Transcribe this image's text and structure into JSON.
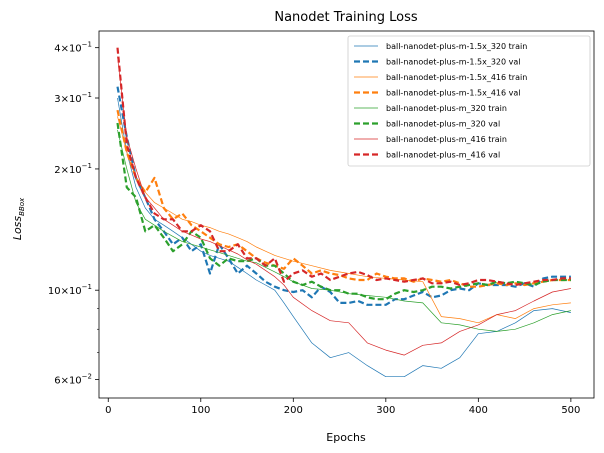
{
  "chart_data": {
    "type": "line",
    "title": "Nanodet Training Loss",
    "xlabel": "Epochs",
    "ylabel": "Loss",
    "ylabel_sub": "BBox",
    "xlim": [
      -10,
      525
    ],
    "ylim": [
      0.054,
      0.44
    ],
    "yscale": "log",
    "legend_position": "top-right",
    "grid": false,
    "x_ticks": [
      0,
      100,
      200,
      300,
      400,
      500
    ],
    "y_ticks": [
      {
        "value": 0.4,
        "base": "4",
        "exp": "−1"
      },
      {
        "value": 0.3,
        "base": "3",
        "exp": "−1"
      },
      {
        "value": 0.2,
        "base": "2",
        "exp": "−1"
      },
      {
        "value": 0.1,
        "base": "10",
        "exp": "−1"
      },
      {
        "value": 0.06,
        "base": "6",
        "exp": "−2"
      }
    ],
    "y_minor_ticks": [
      0.07,
      0.08,
      0.09
    ],
    "times_sign": "×",
    "series": [
      {
        "name": "ball-nanodet-plus-m-1.5x_320 train",
        "color": "#1f77b4",
        "style": "solid",
        "x": [
          10,
          20,
          30,
          40,
          50,
          60,
          70,
          80,
          90,
          100,
          110,
          120,
          130,
          140,
          150,
          160,
          170,
          180,
          190,
          200,
          220,
          240,
          260,
          280,
          300,
          320,
          340,
          360,
          380,
          400,
          420,
          440,
          460,
          480,
          500
        ],
        "y": [
          0.3,
          0.22,
          0.18,
          0.16,
          0.15,
          0.145,
          0.14,
          0.135,
          0.13,
          0.125,
          0.122,
          0.12,
          0.118,
          0.114,
          0.11,
          0.106,
          0.103,
          0.1,
          0.093,
          0.086,
          0.074,
          0.068,
          0.07,
          0.065,
          0.061,
          0.061,
          0.065,
          0.064,
          0.068,
          0.078,
          0.079,
          0.083,
          0.089,
          0.09,
          0.088
        ]
      },
      {
        "name": "ball-nanodet-plus-m-1.5x_320 val",
        "color": "#1f77b4",
        "style": "dashed",
        "x": [
          10,
          20,
          30,
          40,
          50,
          60,
          70,
          80,
          90,
          100,
          110,
          120,
          130,
          140,
          150,
          160,
          170,
          180,
          190,
          200,
          210,
          220,
          230,
          240,
          250,
          260,
          270,
          280,
          290,
          300,
          310,
          320,
          330,
          340,
          350,
          360,
          370,
          380,
          390,
          400,
          410,
          420,
          430,
          440,
          450,
          460,
          470,
          480,
          490,
          500
        ],
        "y": [
          0.32,
          0.24,
          0.19,
          0.17,
          0.15,
          0.14,
          0.13,
          0.135,
          0.125,
          0.13,
          0.11,
          0.13,
          0.12,
          0.11,
          0.115,
          0.11,
          0.105,
          0.102,
          0.1,
          0.099,
          0.1,
          0.096,
          0.102,
          0.099,
          0.093,
          0.093,
          0.094,
          0.092,
          0.092,
          0.092,
          0.095,
          0.095,
          0.097,
          0.099,
          0.096,
          0.097,
          0.1,
          0.101,
          0.1,
          0.104,
          0.103,
          0.103,
          0.103,
          0.102,
          0.104,
          0.102,
          0.107,
          0.108,
          0.108,
          0.108
        ]
      },
      {
        "name": "ball-nanodet-plus-m-1.5x_416 train",
        "color": "#ff7f0e",
        "style": "solid",
        "x": [
          10,
          20,
          30,
          40,
          50,
          60,
          70,
          80,
          90,
          100,
          110,
          120,
          130,
          140,
          150,
          160,
          170,
          180,
          190,
          200,
          220,
          240,
          260,
          280,
          300,
          320,
          340,
          360,
          380,
          400,
          420,
          440,
          460,
          480,
          500
        ],
        "y": [
          0.27,
          0.22,
          0.19,
          0.175,
          0.165,
          0.16,
          0.155,
          0.15,
          0.148,
          0.145,
          0.143,
          0.14,
          0.138,
          0.135,
          0.132,
          0.128,
          0.125,
          0.122,
          0.12,
          0.118,
          0.115,
          0.112,
          0.11,
          0.108,
          0.107,
          0.106,
          0.105,
          0.086,
          0.085,
          0.083,
          0.087,
          0.085,
          0.09,
          0.092,
          0.093
        ]
      },
      {
        "name": "ball-nanodet-plus-m-1.5x_416 val",
        "color": "#ff7f0e",
        "style": "dashed",
        "x": [
          10,
          20,
          30,
          40,
          50,
          60,
          70,
          80,
          90,
          100,
          110,
          120,
          130,
          140,
          150,
          160,
          170,
          180,
          190,
          200,
          210,
          220,
          230,
          240,
          250,
          260,
          270,
          280,
          290,
          300,
          310,
          320,
          330,
          340,
          350,
          360,
          370,
          380,
          390,
          400,
          410,
          420,
          430,
          440,
          450,
          460,
          470,
          480,
          490,
          500
        ],
        "y": [
          0.28,
          0.22,
          0.19,
          0.175,
          0.19,
          0.16,
          0.15,
          0.155,
          0.145,
          0.14,
          0.135,
          0.13,
          0.128,
          0.13,
          0.125,
          0.12,
          0.117,
          0.115,
          0.113,
          0.12,
          0.115,
          0.11,
          0.112,
          0.11,
          0.109,
          0.107,
          0.106,
          0.106,
          0.11,
          0.108,
          0.107,
          0.107,
          0.105,
          0.107,
          0.106,
          0.105,
          0.106,
          0.104,
          0.102,
          0.102,
          0.103,
          0.104,
          0.103,
          0.104,
          0.103,
          0.104,
          0.105,
          0.106,
          0.106,
          0.106
        ]
      },
      {
        "name": "ball-nanodet-plus-m_320 train",
        "color": "#2ca02c",
        "style": "solid",
        "x": [
          10,
          20,
          30,
          40,
          50,
          60,
          70,
          80,
          90,
          100,
          110,
          120,
          130,
          140,
          150,
          160,
          170,
          180,
          190,
          200,
          220,
          240,
          260,
          280,
          300,
          320,
          340,
          360,
          380,
          400,
          420,
          440,
          460,
          480,
          500
        ],
        "y": [
          0.25,
          0.2,
          0.165,
          0.15,
          0.145,
          0.14,
          0.136,
          0.132,
          0.13,
          0.128,
          0.126,
          0.124,
          0.122,
          0.12,
          0.118,
          0.117,
          0.114,
          0.111,
          0.108,
          0.105,
          0.101,
          0.1,
          0.098,
          0.097,
          0.096,
          0.094,
          0.093,
          0.083,
          0.082,
          0.08,
          0.079,
          0.08,
          0.083,
          0.087,
          0.089
        ]
      },
      {
        "name": "ball-nanodet-plus-m_320 val",
        "color": "#2ca02c",
        "style": "dashed",
        "x": [
          10,
          20,
          30,
          40,
          50,
          60,
          70,
          80,
          90,
          100,
          110,
          120,
          130,
          140,
          150,
          160,
          170,
          180,
          190,
          200,
          210,
          220,
          230,
          240,
          250,
          260,
          270,
          280,
          290,
          300,
          310,
          320,
          330,
          340,
          350,
          360,
          370,
          380,
          390,
          400,
          410,
          420,
          430,
          440,
          450,
          460,
          470,
          480,
          490,
          500
        ],
        "y": [
          0.26,
          0.18,
          0.17,
          0.14,
          0.145,
          0.135,
          0.125,
          0.13,
          0.14,
          0.135,
          0.12,
          0.115,
          0.12,
          0.118,
          0.118,
          0.12,
          0.115,
          0.115,
          0.11,
          0.105,
          0.103,
          0.105,
          0.102,
          0.1,
          0.1,
          0.098,
          0.098,
          0.096,
          0.095,
          0.095,
          0.098,
          0.1,
          0.099,
          0.1,
          0.102,
          0.102,
          0.101,
          0.102,
          0.103,
          0.104,
          0.103,
          0.105,
          0.104,
          0.105,
          0.104,
          0.103,
          0.105,
          0.106,
          0.106,
          0.106
        ]
      },
      {
        "name": "ball-nanodet-plus-m_416 train",
        "color": "#d62728",
        "style": "solid",
        "x": [
          10,
          20,
          30,
          40,
          50,
          60,
          70,
          80,
          90,
          100,
          110,
          120,
          130,
          140,
          150,
          160,
          170,
          180,
          190,
          200,
          220,
          240,
          260,
          280,
          300,
          320,
          340,
          360,
          380,
          400,
          420,
          440,
          460,
          480,
          500
        ],
        "y": [
          0.38,
          0.24,
          0.2,
          0.17,
          0.16,
          0.15,
          0.145,
          0.14,
          0.137,
          0.134,
          0.132,
          0.129,
          0.126,
          0.123,
          0.119,
          0.116,
          0.112,
          0.108,
          0.103,
          0.096,
          0.089,
          0.084,
          0.083,
          0.074,
          0.071,
          0.069,
          0.073,
          0.074,
          0.079,
          0.082,
          0.087,
          0.089,
          0.094,
          0.099,
          0.101
        ]
      },
      {
        "name": "ball-nanodet-plus-m_416 val",
        "color": "#d62728",
        "style": "dashed",
        "x": [
          10,
          20,
          30,
          40,
          50,
          60,
          70,
          80,
          90,
          100,
          110,
          120,
          130,
          140,
          150,
          160,
          170,
          180,
          190,
          200,
          210,
          220,
          230,
          240,
          250,
          260,
          270,
          280,
          290,
          300,
          310,
          320,
          330,
          340,
          350,
          360,
          370,
          380,
          390,
          400,
          410,
          420,
          430,
          440,
          450,
          460,
          470,
          480,
          490,
          500
        ],
        "y": [
          0.4,
          0.23,
          0.19,
          0.17,
          0.155,
          0.15,
          0.15,
          0.14,
          0.14,
          0.145,
          0.14,
          0.125,
          0.125,
          0.13,
          0.12,
          0.12,
          0.115,
          0.12,
          0.105,
          0.11,
          0.112,
          0.108,
          0.11,
          0.106,
          0.108,
          0.11,
          0.111,
          0.109,
          0.106,
          0.107,
          0.106,
          0.105,
          0.106,
          0.107,
          0.104,
          0.104,
          0.105,
          0.103,
          0.104,
          0.106,
          0.106,
          0.105,
          0.104,
          0.103,
          0.104,
          0.105,
          0.106,
          0.106,
          0.107,
          0.107
        ]
      }
    ]
  }
}
